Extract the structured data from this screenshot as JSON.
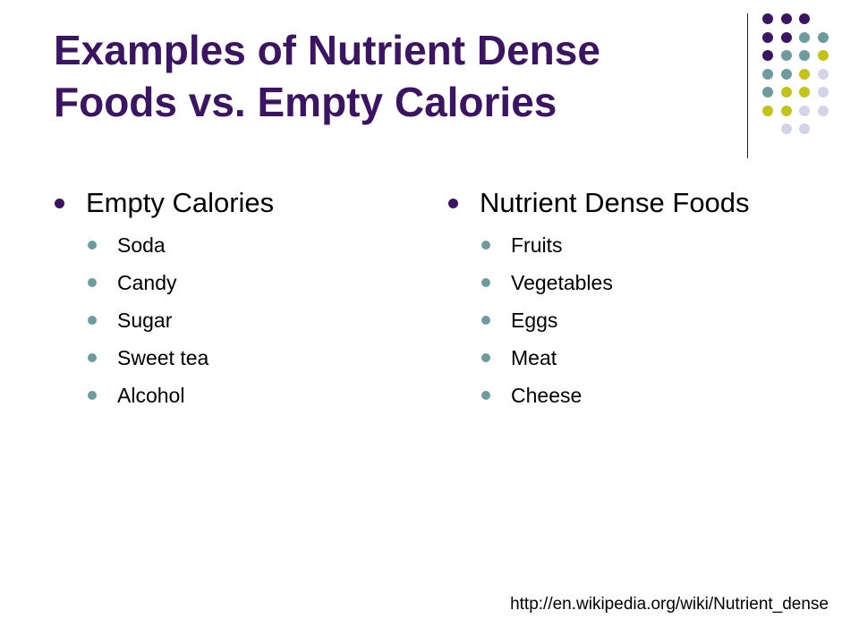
{
  "slide": {
    "title_line1": "Examples of Nutrient Dense",
    "title_line2": "Foods vs. Empty Calories",
    "left": {
      "heading": "Empty Calories",
      "items": [
        "Soda",
        "Candy",
        "Sugar",
        "Sweet tea",
        "Alcohol"
      ]
    },
    "right": {
      "heading": "Nutrient Dense Foods",
      "items": [
        "Fruits",
        "Vegetables",
        "Eggs",
        "Meat",
        "Cheese"
      ]
    },
    "source": "http://en.wikipedia.org/wiki/Nutrient_dense"
  },
  "colors": {
    "title": "#3b1462",
    "purple": "#3b1462",
    "teal": "#6f9b9e",
    "olive": "#c2c21a",
    "lavender": "#d4d4e8"
  },
  "decoration": {
    "dot_grid": [
      [
        "purple",
        "purple",
        "purple",
        null
      ],
      [
        "purple",
        "purple",
        "teal",
        "teal"
      ],
      [
        "purple",
        "teal",
        "teal",
        "olive"
      ],
      [
        "teal",
        "teal",
        "olive",
        "lavender"
      ],
      [
        "teal",
        "olive",
        "olive",
        "lavender"
      ],
      [
        "olive",
        "olive",
        "lavender",
        "lavender"
      ],
      [
        null,
        "lavender",
        "lavender",
        null
      ]
    ]
  }
}
